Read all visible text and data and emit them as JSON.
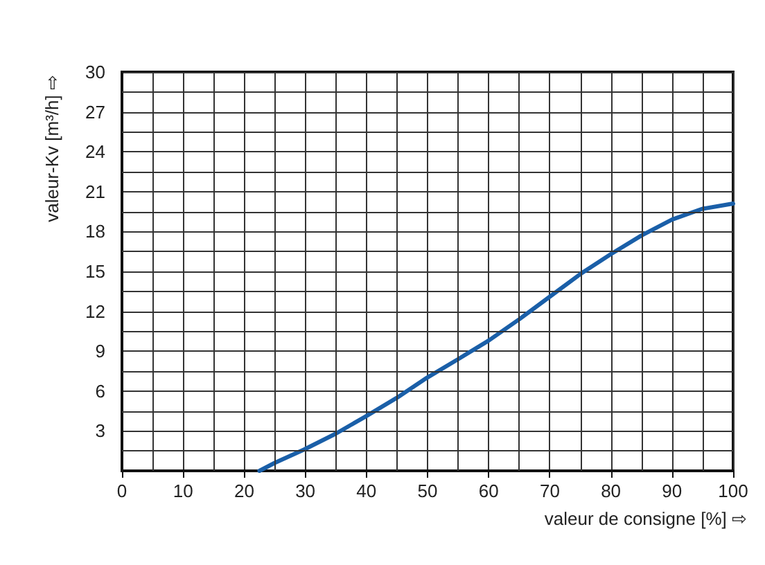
{
  "chart_data": {
    "type": "line",
    "xlabel": "valeur de consigne [%] ⇨",
    "ylabel": "valeur-Kv [m³/h] ⇨",
    "x": [
      22.5,
      25,
      29.8,
      35,
      39.9,
      45,
      49.9,
      55,
      60,
      65,
      70,
      75,
      80,
      85,
      90,
      94.9,
      100
    ],
    "series": [
      {
        "color": "#1a5fa8",
        "values": [
          0,
          0.6,
          1.6,
          2.8,
          4.1,
          5.5,
          7.0,
          8.4,
          9.8,
          11.4,
          13.1,
          14.8,
          16.3,
          17.7,
          18.9,
          19.7,
          20.1
        ]
      }
    ],
    "xlim": [
      0,
      100
    ],
    "xticks": [
      {
        "value": 0,
        "label": "0"
      },
      {
        "value": 5,
        "label": null
      },
      10,
      {
        "value": 15,
        "label": null
      },
      20,
      {
        "value": 25,
        "label": null
      },
      30,
      {
        "value": 35,
        "label": null
      },
      40,
      {
        "value": 45,
        "label": null
      },
      50,
      {
        "value": 55,
        "label": null
      },
      60,
      {
        "value": 65,
        "label": null
      },
      70,
      {
        "value": 75,
        "label": null
      },
      80,
      {
        "value": 85,
        "label": null
      },
      90,
      {
        "value": 95,
        "label": null
      },
      100
    ],
    "ylim": [
      0,
      30
    ],
    "yticks": [
      {
        "value": 1.5,
        "label": null
      },
      3,
      {
        "value": 4.5,
        "label": null
      },
      6,
      {
        "value": 7.5,
        "label": null
      },
      9,
      {
        "value": 10.5,
        "label": null
      },
      12,
      {
        "value": 13.5,
        "label": null
      },
      15,
      {
        "value": 16.5,
        "label": null
      },
      18,
      {
        "value": 19.5,
        "label": null
      },
      21,
      {
        "value": 22.5,
        "label": null
      },
      24,
      {
        "value": 25.5,
        "label": null
      },
      27,
      {
        "value": 28.5,
        "label": null
      },
      30
    ],
    "grid": true,
    "marker": "none",
    "line_style": "solid"
  }
}
